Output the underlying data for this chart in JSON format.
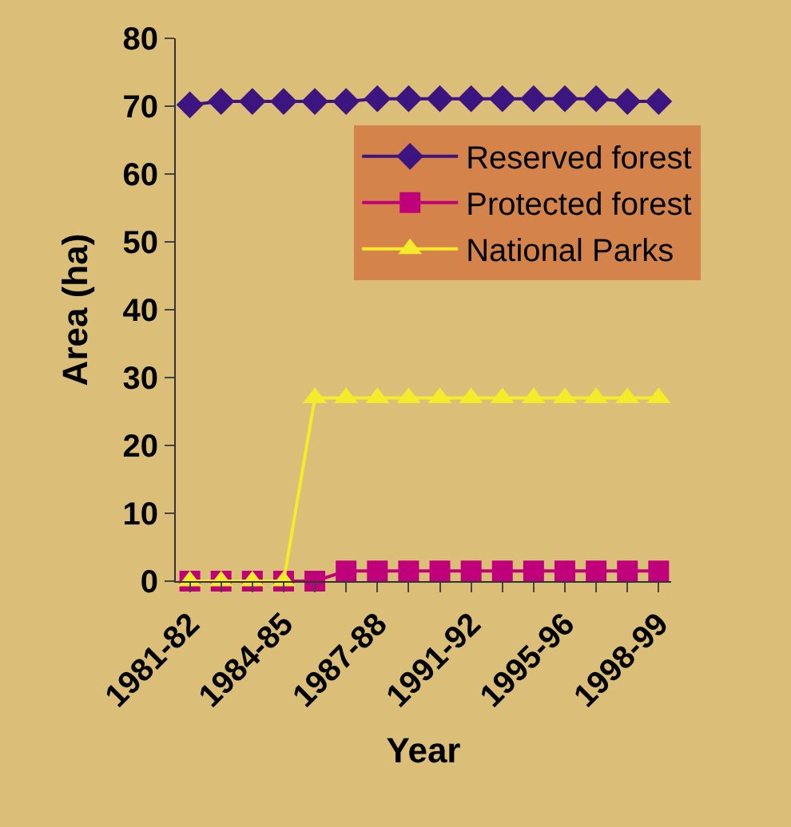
{
  "chart_data": {
    "type": "line",
    "xlabel": "Year",
    "ylabel": "Area (ha)",
    "categories": [
      "1981-82",
      null,
      null,
      "1984-85",
      null,
      null,
      "1987-88",
      null,
      null,
      "1991-92",
      null,
      null,
      "1995-96",
      null,
      null,
      "1998-99"
    ],
    "series": [
      {
        "name": "Reserved forest",
        "color": "#3d1580",
        "marker": "diamond",
        "values": [
          70.2,
          70.7,
          70.7,
          70.7,
          70.7,
          70.7,
          71.1,
          71.1,
          71.1,
          71.1,
          71.1,
          71.1,
          71.1,
          71.1,
          70.7,
          70.7
        ]
      },
      {
        "name": "Protected forest",
        "color": "#c0007a",
        "marker": "square",
        "values": [
          0,
          0,
          0,
          0,
          0,
          1.5,
          1.5,
          1.5,
          1.5,
          1.5,
          1.5,
          1.5,
          1.5,
          1.5,
          1.5,
          1.5
        ]
      },
      {
        "name": "National Parks",
        "color": "#f5eb2a",
        "marker": "triangle",
        "values": [
          0,
          0,
          0,
          0,
          27,
          27,
          27,
          27,
          27,
          27,
          27,
          27,
          27,
          27,
          27,
          27
        ]
      }
    ],
    "ylim": [
      0,
      80
    ],
    "yticks": [
      0,
      10,
      20,
      30,
      40,
      50,
      60,
      70,
      80
    ],
    "legend": "top right",
    "grid": false,
    "line_style": "solid"
  }
}
